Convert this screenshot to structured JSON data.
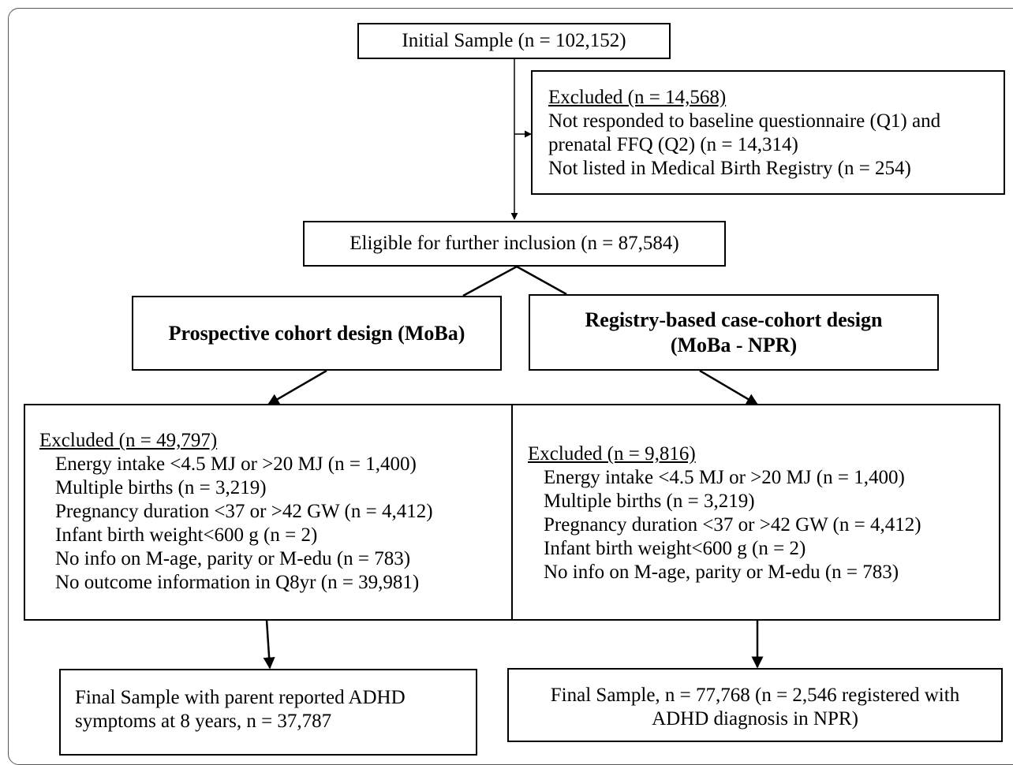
{
  "initial": {
    "label": "Initial Sample (n = 102,152)"
  },
  "excluded_top": {
    "header": "Excluded (n = 14,568)",
    "lines": [
      "Not responded to baseline questionnaire (Q1) and",
      "prenatal FFQ (Q2) (n = 14,314)",
      "Not listed in Medical Birth Registry (n = 254)"
    ]
  },
  "eligible": {
    "label": "Eligible for further inclusion (n = 87,584)"
  },
  "prospective": {
    "label": "Prospective cohort design (MoBa)"
  },
  "registry": {
    "line1": "Registry-based case-cohort design",
    "line2": "(MoBa - NPR)"
  },
  "excluded_left": {
    "header": "Excluded (n = 49,797)",
    "items": [
      "Energy intake <4.5 MJ or >20 MJ (n = 1,400)",
      "Multiple births (n = 3,219)",
      "Pregnancy duration <37 or >42 GW (n = 4,412)",
      "Infant birth weight<600 g (n = 2)",
      "No info on M-age, parity or M-edu (n = 783)",
      "No outcome information in Q8yr (n = 39,981)"
    ]
  },
  "excluded_right": {
    "header": "Excluded (n = 9,816)",
    "items": [
      "Energy intake <4.5 MJ or >20 MJ (n = 1,400)",
      "Multiple births (n = 3,219)",
      "Pregnancy duration <37 or >42 GW (n = 4,412)",
      "Infant birth weight<600 g (n = 2)",
      "No info on M-age, parity or M-edu (n = 783)"
    ]
  },
  "final_left": {
    "line1": "Final Sample with parent reported ADHD",
    "line2": "symptoms at 8 years, n = 37,787"
  },
  "final_right": {
    "line1": "Final Sample, n = 77,768 (n = 2,546 registered with",
    "line2": "ADHD diagnosis in NPR)"
  }
}
